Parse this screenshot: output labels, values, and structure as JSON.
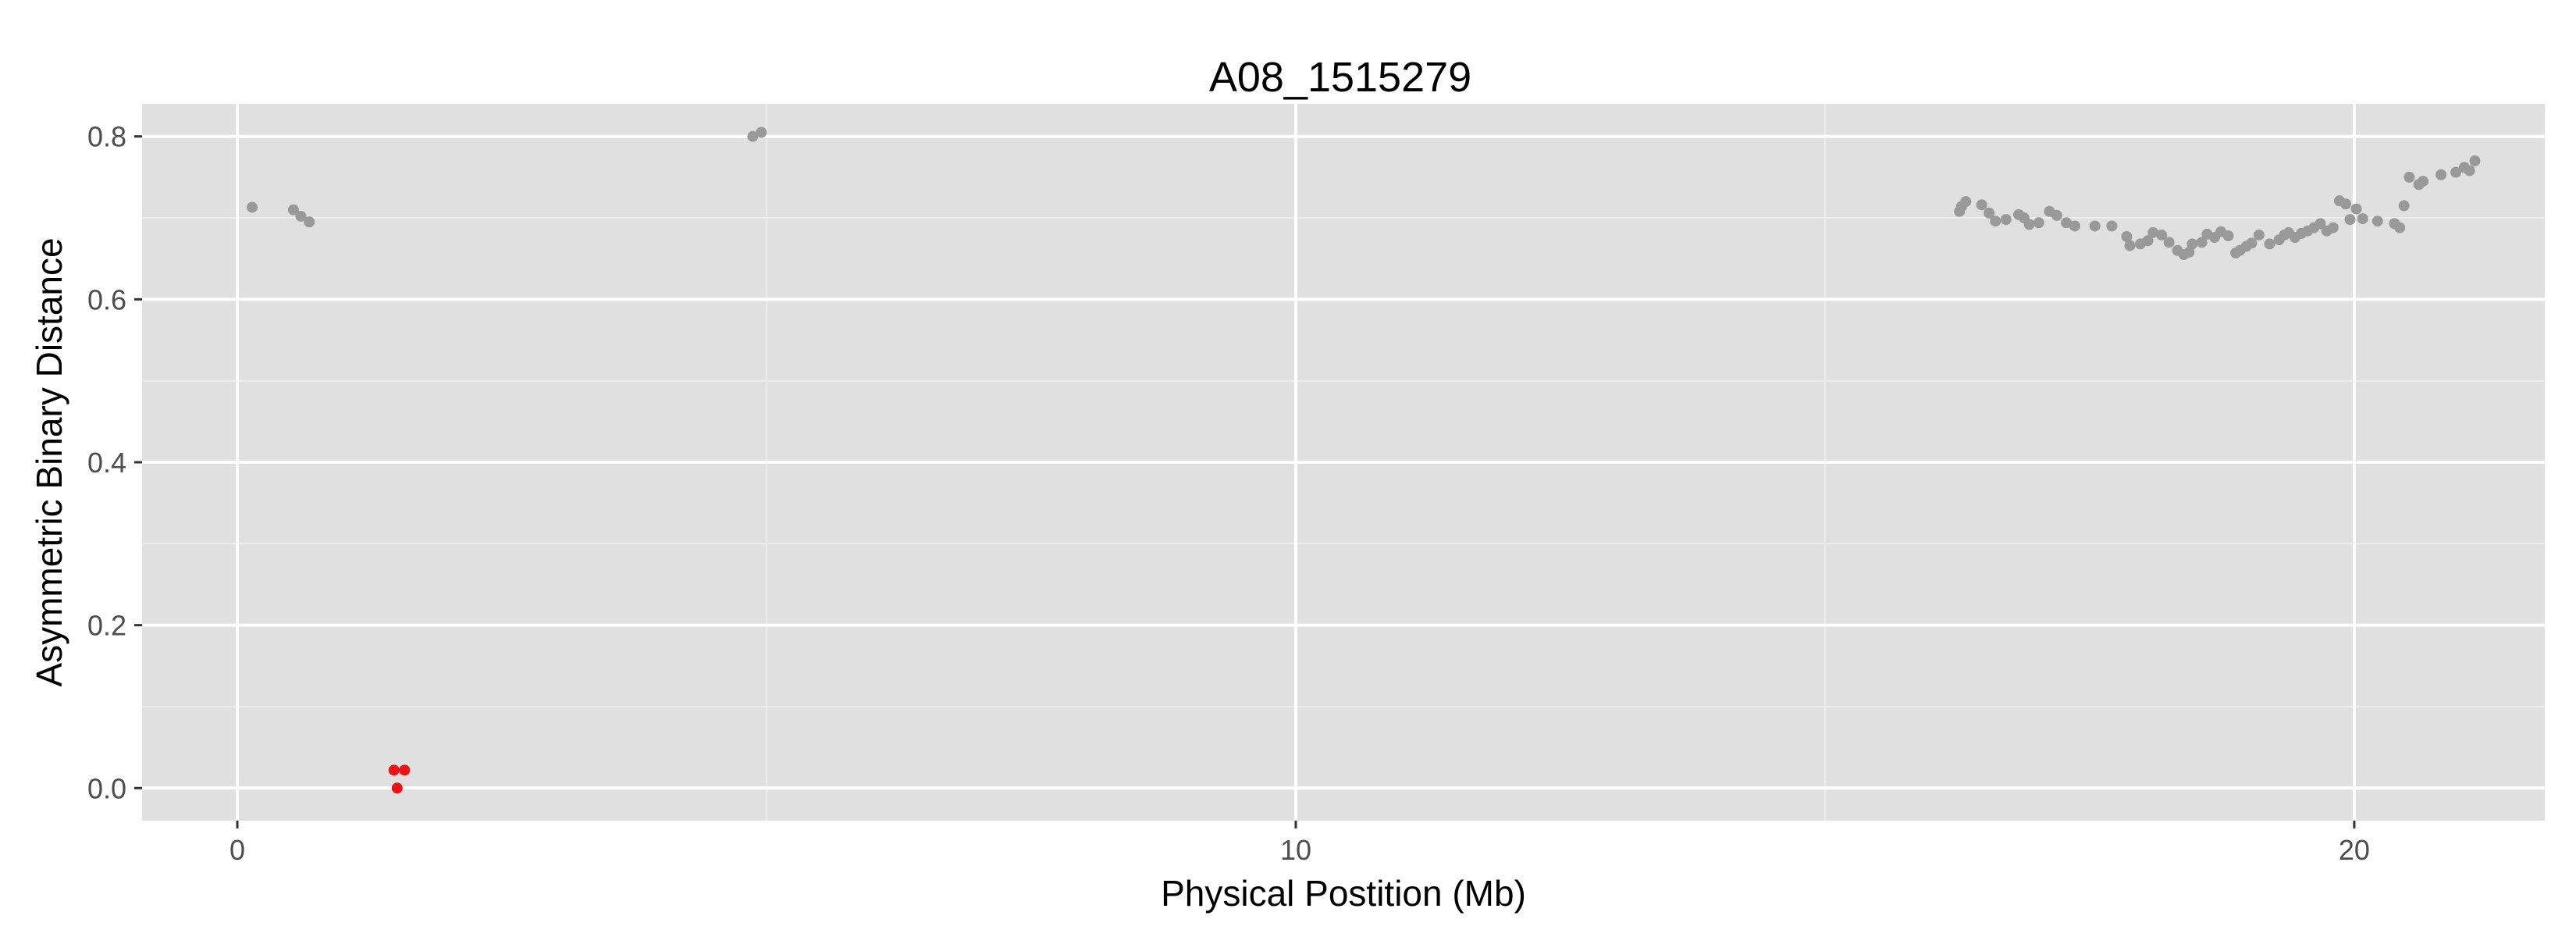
{
  "chart_data": {
    "type": "scatter",
    "title": "A08_1515279",
    "xlabel": "Physical Postition (Mb)",
    "ylabel": "Asymmetric Binary Distance",
    "xlim": [
      -0.9,
      21.8
    ],
    "ylim": [
      -0.04,
      0.84
    ],
    "x_ticks": [
      0,
      10,
      20
    ],
    "x_tick_labels": [
      "0",
      "10",
      "20"
    ],
    "y_ticks": [
      0.0,
      0.2,
      0.4,
      0.6,
      0.8
    ],
    "y_tick_labels": [
      "0.0",
      "0.2",
      "0.4",
      "0.6",
      "0.8"
    ],
    "grid": true,
    "colors": {
      "panel": "#e0e0e0",
      "grid_major": "#ffffff",
      "grid_minor": "#ececec",
      "gray_points": "#999999",
      "red_points": "#ee1111"
    },
    "series": [
      {
        "color": "#999999",
        "points": [
          [
            0.14,
            0.713
          ],
          [
            0.53,
            0.71
          ],
          [
            0.6,
            0.702
          ],
          [
            0.68,
            0.695
          ],
          [
            4.87,
            0.8
          ],
          [
            4.95,
            0.805
          ],
          [
            16.27,
            0.708
          ],
          [
            16.29,
            0.714
          ],
          [
            16.33,
            0.72
          ],
          [
            16.48,
            0.716
          ],
          [
            16.55,
            0.706
          ],
          [
            16.61,
            0.696
          ],
          [
            16.71,
            0.698
          ],
          [
            16.83,
            0.704
          ],
          [
            16.88,
            0.7
          ],
          [
            16.93,
            0.692
          ],
          [
            17.02,
            0.694
          ],
          [
            17.12,
            0.708
          ],
          [
            17.19,
            0.703
          ],
          [
            17.28,
            0.694
          ],
          [
            17.36,
            0.69
          ],
          [
            17.55,
            0.69
          ],
          [
            17.71,
            0.69
          ],
          [
            17.85,
            0.677
          ],
          [
            17.88,
            0.666
          ],
          [
            17.98,
            0.668
          ],
          [
            18.05,
            0.672
          ],
          [
            18.1,
            0.682
          ],
          [
            18.18,
            0.679
          ],
          [
            18.25,
            0.67
          ],
          [
            18.33,
            0.66
          ],
          [
            18.39,
            0.655
          ],
          [
            18.44,
            0.658
          ],
          [
            18.47,
            0.668
          ],
          [
            18.56,
            0.67
          ],
          [
            18.61,
            0.68
          ],
          [
            18.68,
            0.676
          ],
          [
            18.74,
            0.683
          ],
          [
            18.81,
            0.678
          ],
          [
            18.88,
            0.657
          ],
          [
            18.92,
            0.66
          ],
          [
            18.98,
            0.665
          ],
          [
            19.03,
            0.669
          ],
          [
            19.1,
            0.679
          ],
          [
            19.2,
            0.668
          ],
          [
            19.29,
            0.673
          ],
          [
            19.34,
            0.679
          ],
          [
            19.38,
            0.682
          ],
          [
            19.44,
            0.676
          ],
          [
            19.5,
            0.681
          ],
          [
            19.56,
            0.684
          ],
          [
            19.62,
            0.688
          ],
          [
            19.68,
            0.693
          ],
          [
            19.74,
            0.684
          ],
          [
            19.8,
            0.688
          ],
          [
            19.86,
            0.721
          ],
          [
            19.92,
            0.717
          ],
          [
            19.96,
            0.698
          ],
          [
            20.02,
            0.711
          ],
          [
            20.08,
            0.699
          ],
          [
            20.22,
            0.696
          ],
          [
            20.38,
            0.693
          ],
          [
            20.43,
            0.688
          ],
          [
            20.47,
            0.715
          ],
          [
            20.52,
            0.75
          ],
          [
            20.61,
            0.741
          ],
          [
            20.65,
            0.745
          ],
          [
            20.82,
            0.753
          ],
          [
            20.96,
            0.756
          ],
          [
            21.04,
            0.762
          ],
          [
            21.09,
            0.758
          ],
          [
            21.14,
            0.77
          ]
        ]
      },
      {
        "color": "#ee1111",
        "points": [
          [
            1.48,
            0.022
          ],
          [
            1.58,
            0.022
          ],
          [
            1.51,
            0.0
          ]
        ]
      }
    ]
  }
}
